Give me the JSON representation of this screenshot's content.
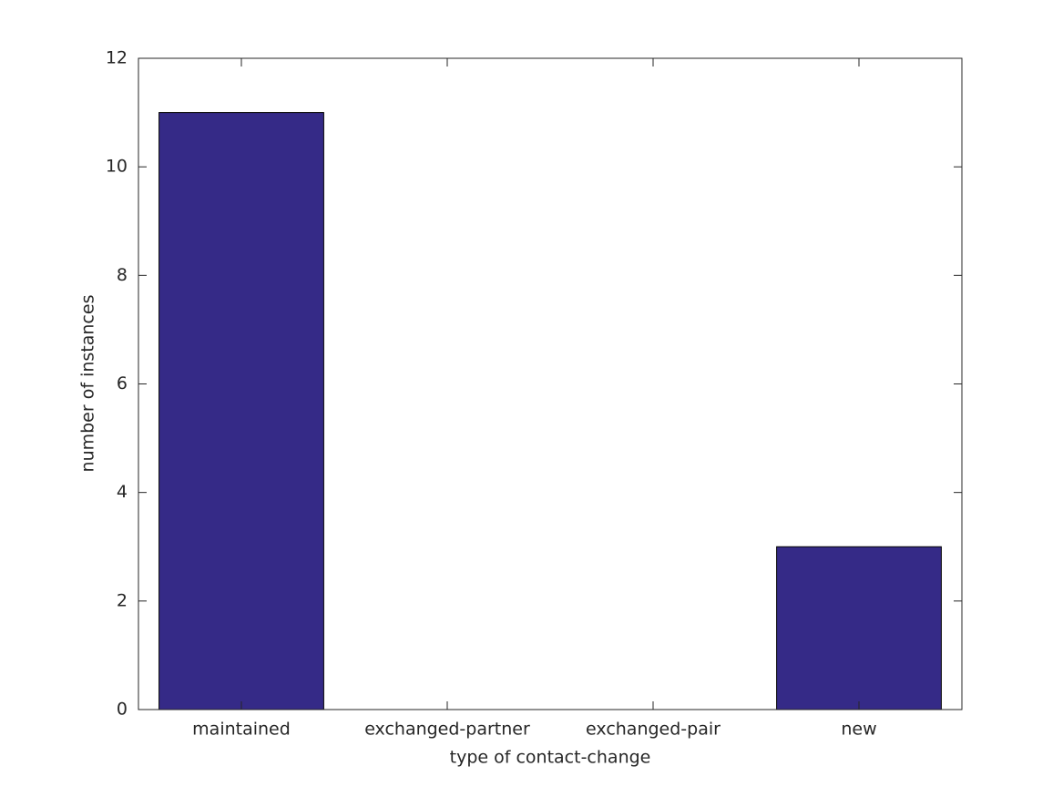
{
  "chart_data": {
    "type": "bar",
    "x_label": "type of contact-change",
    "y_label": "number of instances",
    "categories": [
      "maintained",
      "exchanged-partner",
      "exchanged-pair",
      "new"
    ],
    "values": [
      11,
      0,
      0,
      3
    ],
    "color": "#352a87",
    "ylim": [
      0,
      12
    ],
    "yticks": [
      0,
      2,
      4,
      6,
      8,
      10,
      12
    ],
    "grid": false
  }
}
